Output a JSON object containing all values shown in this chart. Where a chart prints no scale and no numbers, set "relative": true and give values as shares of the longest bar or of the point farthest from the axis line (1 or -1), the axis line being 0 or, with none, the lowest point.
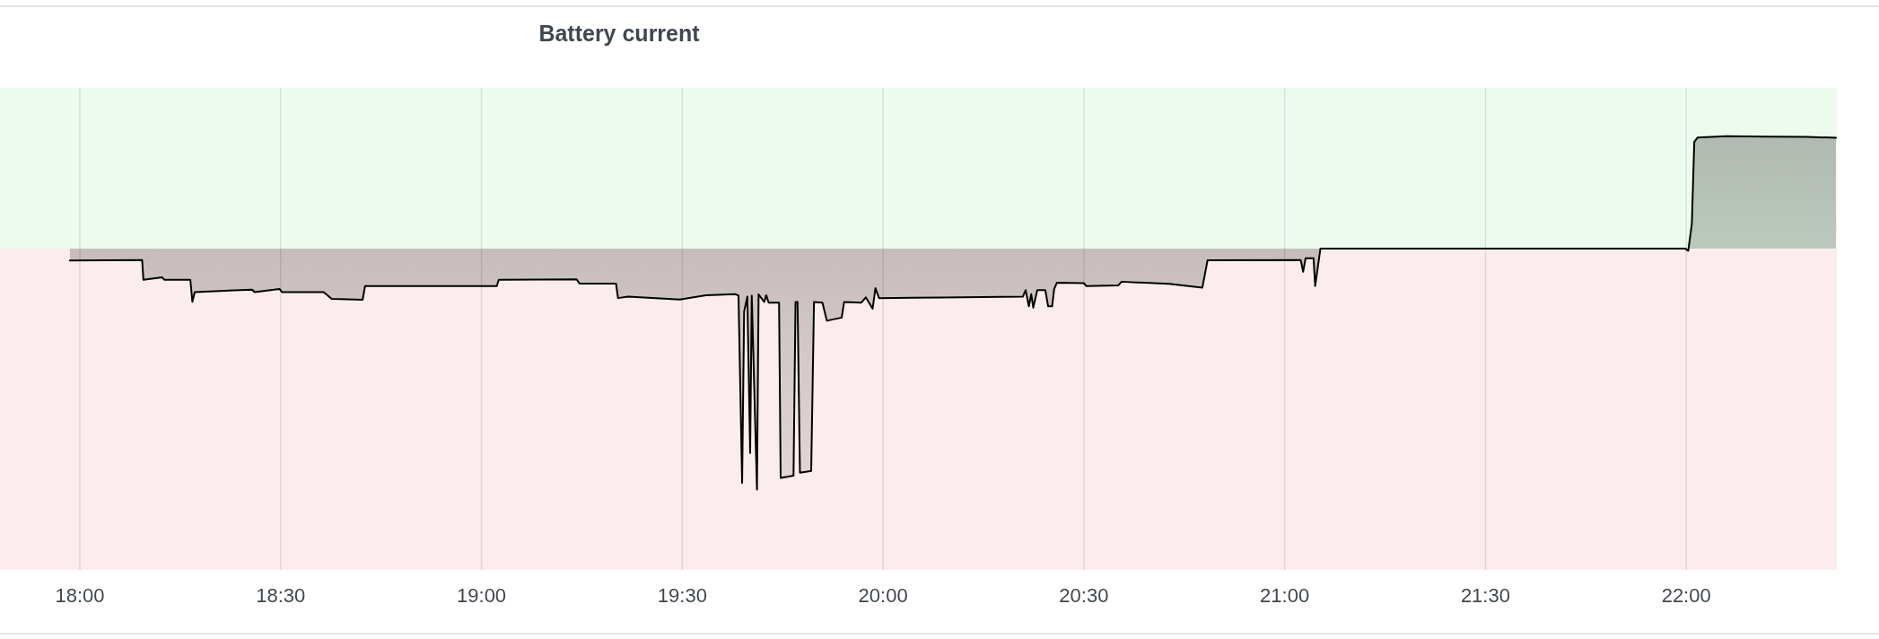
{
  "chart_data": {
    "type": "area",
    "title": "Battery current",
    "relative": true,
    "color": "#000000",
    "x": [
      17.975,
      18.155,
      18.158,
      18.205,
      18.21,
      18.275,
      18.28,
      18.286,
      18.429,
      18.435,
      18.497,
      18.503,
      18.607,
      18.627,
      18.704,
      18.71,
      19.038,
      19.043,
      19.237,
      19.244,
      19.335,
      19.34,
      19.365,
      19.494,
      19.559,
      19.633,
      19.64,
      19.649,
      19.654,
      19.662,
      19.669,
      19.673,
      19.686,
      19.69,
      19.704,
      19.709,
      19.715,
      19.741,
      19.745,
      19.777,
      19.782,
      19.787,
      19.793,
      19.821,
      19.828,
      19.849,
      19.86,
      19.897,
      19.903,
      19.946,
      19.957,
      19.974,
      19.981,
      19.99,
      20.147,
      20.348,
      20.355,
      20.363,
      20.369,
      20.374,
      20.384,
      20.404,
      20.411,
      20.421,
      20.426,
      20.433,
      20.5,
      20.506,
      20.586,
      20.594,
      20.712,
      20.795,
      20.808,
      21.04,
      21.046,
      21.052,
      21.072,
      21.076,
      21.089,
      21.998,
      22.005,
      22.014,
      22.02,
      22.028,
      22.1,
      22.2,
      22.3,
      22.373
    ],
    "values": [
      -0.049,
      -0.047,
      -0.129,
      -0.119,
      -0.129,
      -0.129,
      -0.22,
      -0.18,
      -0.17,
      -0.18,
      -0.167,
      -0.18,
      -0.18,
      -0.208,
      -0.212,
      -0.155,
      -0.155,
      -0.129,
      -0.127,
      -0.145,
      -0.145,
      -0.205,
      -0.199,
      -0.211,
      -0.193,
      -0.189,
      -0.195,
      -0.972,
      -0.261,
      -0.199,
      -0.848,
      -0.195,
      -1.0,
      -0.19,
      -0.221,
      -0.193,
      -0.224,
      -0.224,
      -0.951,
      -0.942,
      -0.221,
      -0.221,
      -0.93,
      -0.922,
      -0.221,
      -0.224,
      -0.299,
      -0.286,
      -0.221,
      -0.224,
      -0.202,
      -0.249,
      -0.164,
      -0.205,
      -0.203,
      -0.199,
      -0.172,
      -0.239,
      -0.189,
      -0.245,
      -0.172,
      -0.172,
      -0.239,
      -0.239,
      -0.168,
      -0.141,
      -0.143,
      -0.155,
      -0.152,
      -0.137,
      -0.146,
      -0.162,
      -0.048,
      -0.047,
      -0.096,
      -0.04,
      -0.04,
      -0.155,
      0,
      0,
      -0.009,
      0.104,
      0.443,
      0.461,
      0.467,
      0.465,
      0.464,
      0.46
    ],
    "xlim": [
      17.801,
      22.375
    ],
    "xticks": [
      {
        "value": 18,
        "label": "18:00"
      },
      {
        "value": 18.5,
        "label": "18:30"
      },
      {
        "value": 19,
        "label": "19:00"
      },
      {
        "value": 19.5,
        "label": "19:30"
      },
      {
        "value": 20,
        "label": "20:00"
      },
      {
        "value": 20.5,
        "label": "20:30"
      },
      {
        "value": 21,
        "label": "21:00"
      },
      {
        "value": 21.5,
        "label": "21:30"
      },
      {
        "value": 22,
        "label": "22:00"
      }
    ],
    "grid": "x",
    "bands": [
      {
        "axis": "y",
        "from": 0,
        "to": 0.667,
        "color": "#edfbee"
      },
      {
        "axis": "y",
        "from": -1.333,
        "to": 0,
        "color": "#fbeded"
      }
    ]
  }
}
